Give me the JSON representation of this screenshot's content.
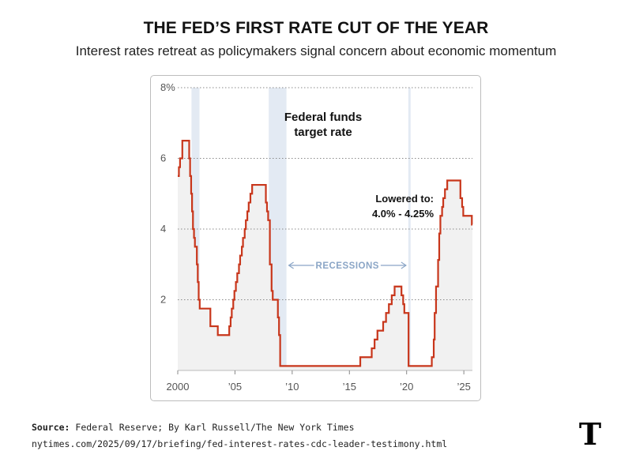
{
  "header": {
    "title": "THE FED’S FIRST RATE CUT OF THE YEAR",
    "subtitle": "Interest rates retreat as policymakers signal concern about economic momentum"
  },
  "footer": {
    "source_label": "Source:",
    "source_text": "Federal Reserve; By Karl Russell/The New York Times",
    "url": "nytimes.com/2025/09/17/briefing/fed-interest-rates-cdc-leader-testimony.html",
    "logo_text": "T"
  },
  "chart_data": {
    "type": "line",
    "xlim": [
      2000,
      2025.75
    ],
    "ylim": [
      0,
      8
    ],
    "y_ticks": [
      {
        "value": 8,
        "label": "8%"
      },
      {
        "value": 6,
        "label": "6"
      },
      {
        "value": 4,
        "label": "4"
      },
      {
        "value": 2,
        "label": "2"
      }
    ],
    "x_ticks": [
      {
        "value": 2000,
        "label": "2000"
      },
      {
        "value": 2005,
        "label": "’05"
      },
      {
        "value": 2010,
        "label": "’10"
      },
      {
        "value": 2015,
        "label": "’15"
      },
      {
        "value": 2020,
        "label": "’20"
      },
      {
        "value": 2025,
        "label": "’25"
      }
    ],
    "grid": "horizontal-dotted",
    "series_label": "Federal funds target rate",
    "recessions_label": "RECESSIONS",
    "recessions": [
      [
        2001.2,
        2001.9
      ],
      [
        2007.95,
        2009.5
      ],
      [
        2020.15,
        2020.35
      ]
    ],
    "annotation": {
      "line1": "Lowered to:",
      "line2": "4.0% - 4.25%"
    },
    "colors": {
      "line": "#c8361b",
      "area": "#f1f1f1",
      "recession": "#e3eaf3",
      "recession_text": "#8aa5c6"
    },
    "series": [
      {
        "values": [
          [
            2000.0,
            5.5
          ],
          [
            2000.1,
            5.75
          ],
          [
            2000.2,
            6.0
          ],
          [
            2000.4,
            6.5
          ],
          [
            2001.0,
            6.0
          ],
          [
            2001.08,
            5.5
          ],
          [
            2001.17,
            5.0
          ],
          [
            2001.25,
            4.5
          ],
          [
            2001.33,
            4.0
          ],
          [
            2001.42,
            3.75
          ],
          [
            2001.5,
            3.5
          ],
          [
            2001.67,
            3.0
          ],
          [
            2001.75,
            2.5
          ],
          [
            2001.83,
            2.0
          ],
          [
            2001.92,
            1.75
          ],
          [
            2002.85,
            1.25
          ],
          [
            2003.5,
            1.0
          ],
          [
            2004.5,
            1.25
          ],
          [
            2004.62,
            1.5
          ],
          [
            2004.72,
            1.75
          ],
          [
            2004.85,
            2.0
          ],
          [
            2004.95,
            2.25
          ],
          [
            2005.08,
            2.5
          ],
          [
            2005.2,
            2.75
          ],
          [
            2005.35,
            3.0
          ],
          [
            2005.45,
            3.25
          ],
          [
            2005.6,
            3.5
          ],
          [
            2005.7,
            3.75
          ],
          [
            2005.85,
            4.0
          ],
          [
            2005.95,
            4.25
          ],
          [
            2006.08,
            4.5
          ],
          [
            2006.2,
            4.75
          ],
          [
            2006.35,
            5.0
          ],
          [
            2006.5,
            5.25
          ],
          [
            2007.7,
            4.75
          ],
          [
            2007.8,
            4.5
          ],
          [
            2007.9,
            4.25
          ],
          [
            2008.05,
            3.0
          ],
          [
            2008.2,
            2.25
          ],
          [
            2008.3,
            2.0
          ],
          [
            2008.75,
            1.5
          ],
          [
            2008.85,
            1.0
          ],
          [
            2008.95,
            0.125
          ],
          [
            2015.95,
            0.375
          ],
          [
            2016.95,
            0.625
          ],
          [
            2017.2,
            0.875
          ],
          [
            2017.45,
            1.125
          ],
          [
            2017.95,
            1.375
          ],
          [
            2018.2,
            1.625
          ],
          [
            2018.45,
            1.875
          ],
          [
            2018.7,
            2.125
          ],
          [
            2018.95,
            2.375
          ],
          [
            2019.55,
            2.125
          ],
          [
            2019.7,
            1.875
          ],
          [
            2019.8,
            1.625
          ],
          [
            2020.17,
            0.125
          ],
          [
            2022.2,
            0.375
          ],
          [
            2022.37,
            0.875
          ],
          [
            2022.45,
            1.625
          ],
          [
            2022.57,
            2.375
          ],
          [
            2022.75,
            3.125
          ],
          [
            2022.85,
            3.875
          ],
          [
            2022.95,
            4.375
          ],
          [
            2023.1,
            4.625
          ],
          [
            2023.2,
            4.875
          ],
          [
            2023.35,
            5.125
          ],
          [
            2023.55,
            5.375
          ],
          [
            2024.7,
            4.875
          ],
          [
            2024.85,
            4.625
          ],
          [
            2024.95,
            4.375
          ],
          [
            2025.7,
            4.125
          ],
          [
            2025.75,
            4.125
          ]
        ]
      }
    ]
  }
}
